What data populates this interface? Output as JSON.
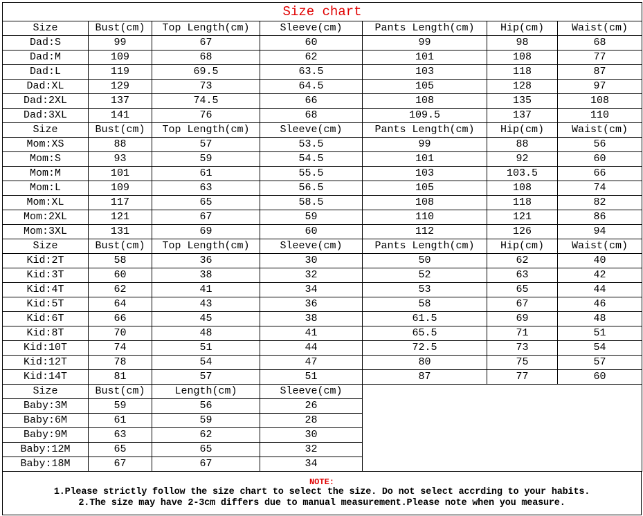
{
  "title": "Size chart",
  "main_header": [
    "Size",
    "Bust(cm)",
    "Top Length(cm)",
    "Sleeve(cm)",
    "Pants Length(cm)",
    "Hip(cm)",
    "Waist(cm)"
  ],
  "sections": [
    {
      "rows": [
        [
          "Dad:S",
          "99",
          "67",
          "60",
          "99",
          "98",
          "68"
        ],
        [
          "Dad:M",
          "109",
          "68",
          "62",
          "101",
          "108",
          "77"
        ],
        [
          "Dad:L",
          "119",
          "69.5",
          "63.5",
          "103",
          "118",
          "87"
        ],
        [
          "Dad:XL",
          "129",
          "73",
          "64.5",
          "105",
          "128",
          "97"
        ],
        [
          "Dad:2XL",
          "137",
          "74.5",
          "66",
          "108",
          "135",
          "108"
        ],
        [
          "Dad:3XL",
          "141",
          "76",
          "68",
          "109.5",
          "137",
          "110"
        ]
      ]
    },
    {
      "rows": [
        [
          "Mom:XS",
          "88",
          "57",
          "53.5",
          "99",
          "88",
          "56"
        ],
        [
          "Mom:S",
          "93",
          "59",
          "54.5",
          "101",
          "92",
          "60"
        ],
        [
          "Mom:M",
          "101",
          "61",
          "55.5",
          "103",
          "103.5",
          "66"
        ],
        [
          "Mom:L",
          "109",
          "63",
          "56.5",
          "105",
          "108",
          "74"
        ],
        [
          "Mom:XL",
          "117",
          "65",
          "58.5",
          "108",
          "118",
          "82"
        ],
        [
          "Mom:2XL",
          "121",
          "67",
          "59",
          "110",
          "121",
          "86"
        ],
        [
          "Mom:3XL",
          "131",
          "69",
          "60",
          "112",
          "126",
          "94"
        ]
      ]
    },
    {
      "rows": [
        [
          "Kid:2T",
          "58",
          "36",
          "30",
          "50",
          "62",
          "40"
        ],
        [
          "Kid:3T",
          "60",
          "38",
          "32",
          "52",
          "63",
          "42"
        ],
        [
          "Kid:4T",
          "62",
          "41",
          "34",
          "53",
          "65",
          "44"
        ],
        [
          "Kid:5T",
          "64",
          "43",
          "36",
          "58",
          "67",
          "46"
        ],
        [
          "Kid:6T",
          "66",
          "45",
          "38",
          "61.5",
          "69",
          "48"
        ],
        [
          "Kid:8T",
          "70",
          "48",
          "41",
          "65.5",
          "71",
          "51"
        ],
        [
          "Kid:10T",
          "74",
          "51",
          "44",
          "72.5",
          "73",
          "54"
        ],
        [
          "Kid:12T",
          "78",
          "54",
          "47",
          "80",
          "75",
          "57"
        ],
        [
          "Kid:14T",
          "81",
          "57",
          "51",
          "87",
          "77",
          "60"
        ]
      ]
    }
  ],
  "baby": {
    "header": [
      "Size",
      "Bust(cm)",
      "Length(cm)",
      "Sleeve(cm)"
    ],
    "rows": [
      [
        "Baby:3M",
        "59",
        "56",
        "26"
      ],
      [
        "Baby:6M",
        "61",
        "59",
        "28"
      ],
      [
        "Baby:9M",
        "63",
        "62",
        "30"
      ],
      [
        "Baby:12M",
        "65",
        "65",
        "32"
      ],
      [
        "Baby:18M",
        "67",
        "67",
        "34"
      ]
    ]
  },
  "note": {
    "title": "NOTE:",
    "lines": [
      "1.Please strictly follow the size chart to select the size. Do not select accrding to your habits.",
      "2.The size may have 2-3cm differs  due to manual measurement.Please note when you measure."
    ]
  },
  "colors": {
    "title": "#e00000",
    "note_title": "#e00000",
    "border": "#000000"
  }
}
